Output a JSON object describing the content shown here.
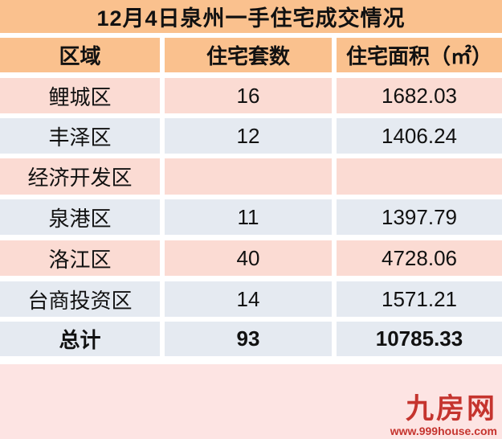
{
  "title": "12月4日泉州一手住宅成交情况",
  "table": {
    "headers": {
      "region": "区域",
      "units": "住宅套数",
      "area": "住宅面积（㎡）"
    },
    "rows": [
      {
        "region": "鲤城区",
        "units": "16",
        "area": "1682.03"
      },
      {
        "region": "丰泽区",
        "units": "12",
        "area": "1406.24"
      },
      {
        "region": "经济开发区",
        "units": "",
        "area": ""
      },
      {
        "region": "泉港区",
        "units": "11",
        "area": "1397.79"
      },
      {
        "region": "洛江区",
        "units": "40",
        "area": "4728.06"
      },
      {
        "region": "台商投资区",
        "units": "14",
        "area": "1571.21"
      }
    ],
    "total": {
      "region": "总计",
      "units": "93",
      "area": "10785.33"
    }
  },
  "footer": {
    "logo_text": "九房网",
    "logo_url": "www.999house.com"
  },
  "colors": {
    "header_orange": "#FAC18E",
    "row_pink": "#FBDBD3",
    "row_blue": "#E5EAF1",
    "band_pink": "#FDE4E3",
    "logo_red": "#C5342E",
    "text": "#111111"
  },
  "chart_data": {
    "type": "table",
    "title": "12月4日泉州一手住宅成交情况",
    "columns": [
      "区域",
      "住宅套数",
      "住宅面积（㎡）"
    ],
    "rows": [
      [
        "鲤城区",
        16,
        1682.03
      ],
      [
        "丰泽区",
        12,
        1406.24
      ],
      [
        "经济开发区",
        null,
        null
      ],
      [
        "泉港区",
        11,
        1397.79
      ],
      [
        "洛江区",
        40,
        4728.06
      ],
      [
        "台商投资区",
        14,
        1571.21
      ]
    ],
    "total_row": [
      "总计",
      93,
      10785.33
    ]
  }
}
